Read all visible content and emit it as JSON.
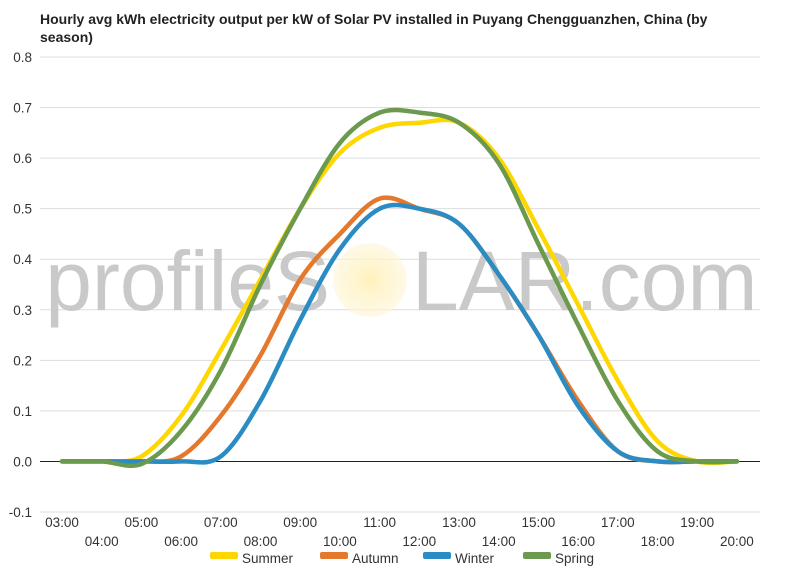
{
  "chart_data": {
    "type": "line",
    "title": "Hourly avg kWh electricity output per kW of Solar PV installed in Puyang Chengguanzhen, China (by season)",
    "xlabel": "",
    "ylabel": "",
    "ylim": [
      -0.1,
      0.8
    ],
    "yticks": [
      "-0.1",
      "0.0",
      "0.1",
      "0.2",
      "0.3",
      "0.4",
      "0.5",
      "0.6",
      "0.7",
      "0.8"
    ],
    "categories": [
      "03:00",
      "04:00",
      "05:00",
      "06:00",
      "07:00",
      "08:00",
      "09:00",
      "10:00",
      "11:00",
      "12:00",
      "13:00",
      "14:00",
      "15:00",
      "16:00",
      "17:00",
      "18:00",
      "19:00",
      "20:00"
    ],
    "grid": true,
    "legend_position": "bottom",
    "series": [
      {
        "name": "Summer",
        "color": "#FFD700",
        "values": [
          0.0,
          0.0,
          0.01,
          0.09,
          0.22,
          0.36,
          0.5,
          0.61,
          0.66,
          0.67,
          0.67,
          0.6,
          0.46,
          0.31,
          0.16,
          0.04,
          0.0,
          0.0
        ]
      },
      {
        "name": "Autumn",
        "color": "#E4782C",
        "values": [
          0.0,
          0.0,
          0.0,
          0.01,
          0.09,
          0.21,
          0.36,
          0.45,
          0.52,
          0.5,
          0.47,
          0.37,
          0.25,
          0.12,
          0.02,
          0.0,
          0.0,
          0.0
        ]
      },
      {
        "name": "Winter",
        "color": "#2B8CC4",
        "values": [
          0.0,
          0.0,
          0.0,
          0.0,
          0.01,
          0.12,
          0.28,
          0.42,
          0.5,
          0.5,
          0.47,
          0.37,
          0.25,
          0.11,
          0.02,
          0.0,
          0.0,
          0.0
        ]
      },
      {
        "name": "Spring",
        "color": "#6B9A4F",
        "values": [
          0.0,
          0.0,
          -0.005,
          0.06,
          0.18,
          0.35,
          0.5,
          0.63,
          0.69,
          0.69,
          0.67,
          0.59,
          0.43,
          0.27,
          0.12,
          0.02,
          0.0,
          0.0
        ]
      }
    ]
  },
  "watermark": {
    "text_left": "profileS",
    "text_right": "LAR.com",
    "sun_color": "#FFF3C4"
  }
}
